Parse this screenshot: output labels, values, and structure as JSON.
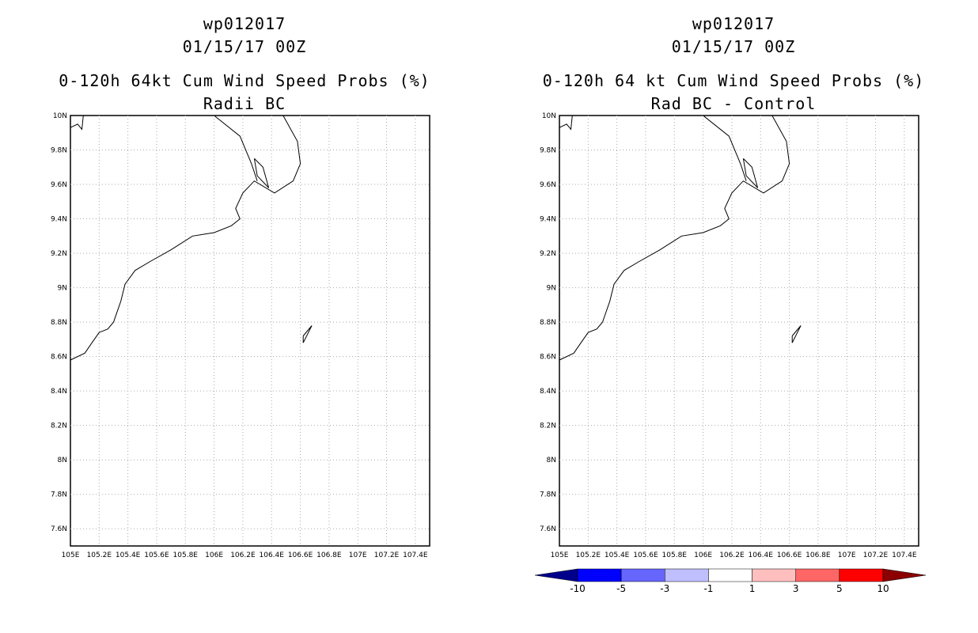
{
  "panels": [
    {
      "title_line1": "wp012017",
      "title_line2": "01/15/17 00Z",
      "title_line3": "0-120h 64kt Cum Wind Speed Probs (%)",
      "title_line4": "Radii BC"
    },
    {
      "title_line1": "wp012017",
      "title_line2": "01/15/17 00Z",
      "title_line3": "0-120h 64 kt Cum Wind Speed Probs (%)",
      "title_line4": "Rad BC - Control"
    }
  ],
  "map": {
    "lat_labels": [
      "10N",
      "9.8N",
      "9.6N",
      "9.4N",
      "9.2N",
      "9N",
      "8.8N",
      "8.6N",
      "8.4N",
      "8.2N",
      "8N",
      "7.8N",
      "7.6N"
    ],
    "lon_labels": [
      "105E",
      "105.2E",
      "105.4E",
      "105.6E",
      "105.8E",
      "106E",
      "106.2E",
      "106.4E",
      "106.6E",
      "106.8E",
      "107E",
      "107.2E",
      "107.4E"
    ],
    "lon_range": [
      105.0,
      107.5
    ],
    "lat_range": [
      7.5,
      10.0
    ],
    "grid": "dotted",
    "coastline": [
      [
        105.0,
        8.58
      ],
      [
        105.1,
        8.62
      ],
      [
        105.15,
        8.68
      ],
      [
        105.2,
        8.74
      ],
      [
        105.26,
        8.76
      ],
      [
        105.3,
        8.8
      ],
      [
        105.35,
        8.92
      ],
      [
        105.38,
        9.02
      ],
      [
        105.45,
        9.1
      ],
      [
        105.55,
        9.15
      ],
      [
        105.7,
        9.22
      ],
      [
        105.85,
        9.3
      ],
      [
        106.0,
        9.32
      ],
      [
        106.12,
        9.36
      ],
      [
        106.18,
        9.4
      ],
      [
        106.15,
        9.46
      ],
      [
        106.2,
        9.55
      ],
      [
        106.28,
        9.62
      ],
      [
        106.42,
        9.55
      ],
      [
        106.55,
        9.62
      ],
      [
        106.6,
        9.72
      ],
      [
        106.58,
        9.85
      ],
      [
        106.48,
        10.0
      ]
    ],
    "estuary_1": [
      [
        106.28,
        9.75
      ],
      [
        106.3,
        9.65
      ],
      [
        106.38,
        9.58
      ],
      [
        106.34,
        9.7
      ],
      [
        106.28,
        9.75
      ]
    ],
    "estuary_2": [
      [
        106.0,
        10.0
      ],
      [
        106.18,
        9.88
      ],
      [
        106.26,
        9.72
      ],
      [
        106.3,
        9.62
      ]
    ],
    "island": [
      [
        106.62,
        8.72
      ],
      [
        106.68,
        8.78
      ],
      [
        106.62,
        8.68
      ],
      [
        106.62,
        8.72
      ]
    ],
    "top_left_coast": [
      [
        105.0,
        9.93
      ],
      [
        105.05,
        9.95
      ],
      [
        105.08,
        9.92
      ],
      [
        105.09,
        10.0
      ]
    ]
  },
  "colorbar": {
    "labels": [
      "-10",
      "-5",
      "-3",
      "-1",
      "1",
      "3",
      "5",
      "10"
    ],
    "colors": [
      "#00008b",
      "#0000ff",
      "#6666ff",
      "#bfbfff",
      "#ffffff",
      "#ffbfbf",
      "#ff6666",
      "#ff0000",
      "#8b0000"
    ]
  }
}
